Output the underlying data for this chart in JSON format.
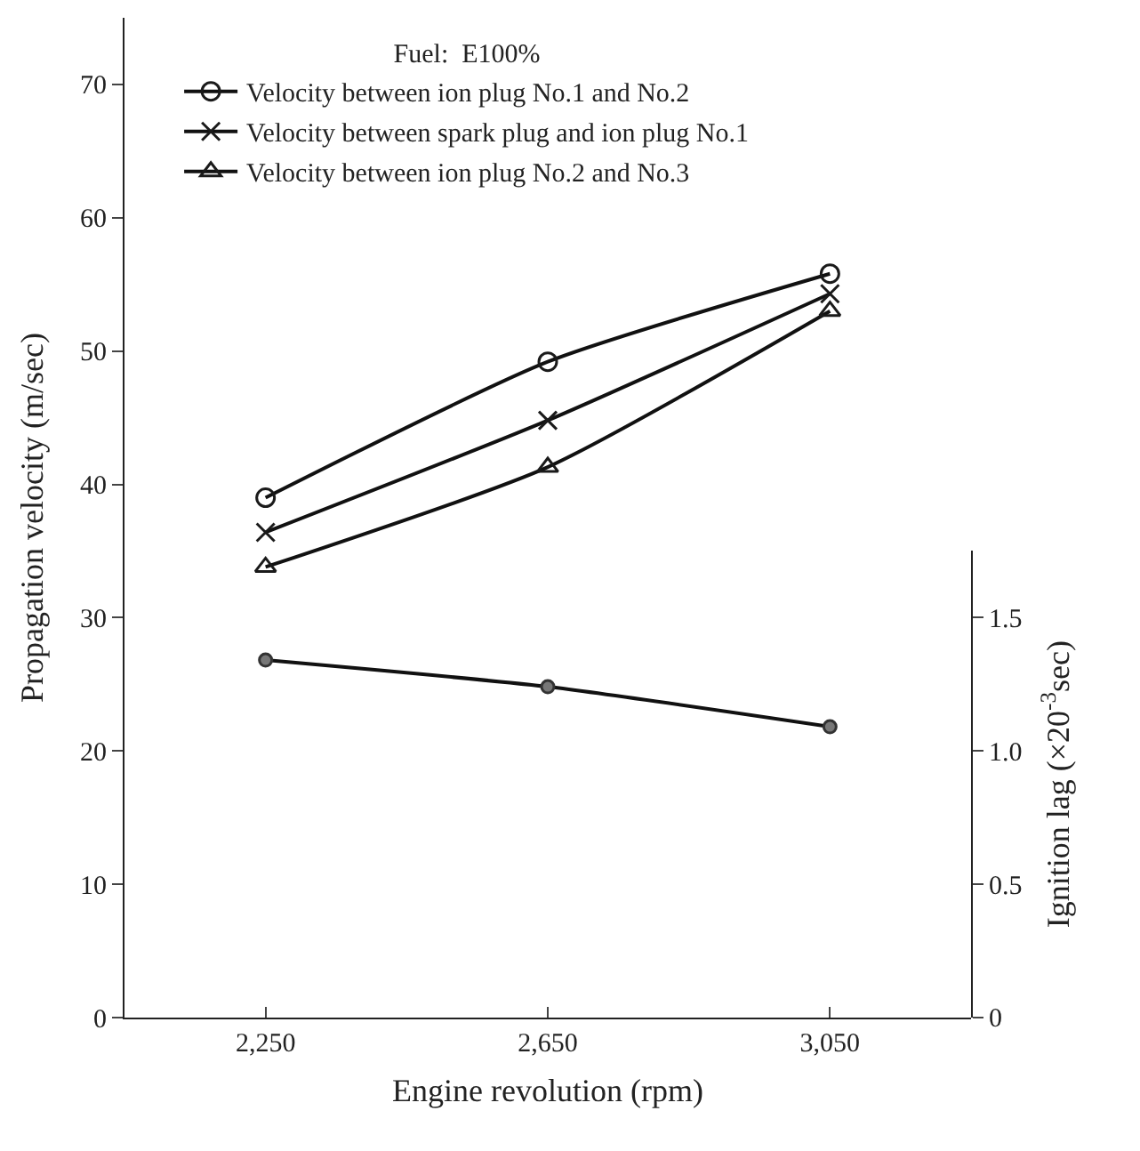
{
  "chart_data": {
    "type": "line",
    "xlabel": "Engine revolution (rpm)",
    "ylabel": "Propagation velocity (m/sec)",
    "y2label": "Ignition lag (×20$^{-3}$sec)",
    "legend_title": "Fuel:  E100%",
    "x": [
      2250,
      2650,
      3050
    ],
    "series": [
      {
        "name": "Velocity between ion plug No.1 and No.2",
        "color": "#1a1a1a",
        "marker": "circle",
        "values": [
          39,
          49.2,
          55.8
        ]
      },
      {
        "name": "Velocity between spark plug and ion plug No.1",
        "color": "#1a1a1a",
        "marker": "cross",
        "values": [
          36.4,
          44.8,
          54.3
        ]
      },
      {
        "name": "Velocity between ion plug No.2 and No.3",
        "color": "#1a1a1a",
        "marker": "triangle",
        "values": [
          33.8,
          41.3,
          53.0
        ]
      },
      {
        "color": "#777777",
        "marker": "circle",
        "axis": "y2",
        "values": [
          1.34,
          1.24,
          1.09
        ]
      }
    ],
    "xlim": [
      2050,
      3250
    ],
    "xticks": [
      {
        "value": 2250,
        "label": "2,250"
      },
      {
        "value": 2650,
        "label": "2,650"
      },
      {
        "value": 3050,
        "label": "3,050"
      }
    ],
    "ylim": [
      0,
      75
    ],
    "yticks": [
      0,
      10,
      20,
      30,
      40,
      50,
      60,
      70
    ],
    "y2lim": [
      0,
      1.75
    ],
    "y2ticks": [
      0,
      0.5,
      {
        "value": 1,
        "label": "1.0"
      },
      1.5
    ],
    "grid": false,
    "legend": "top",
    "line_style": "solid"
  }
}
